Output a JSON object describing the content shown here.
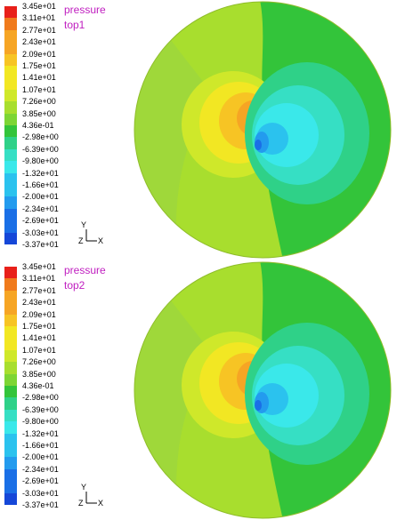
{
  "colors": {
    "red": "#e8201a",
    "orange": "#f07a1c",
    "light_orange": "#f6a524",
    "yellow_orange": "#f7c424",
    "yellow": "#f2e723",
    "yellow_green": "#cfe82a",
    "light_green": "#a8de2e",
    "green": "#7dd534",
    "bright_green": "#33c43a",
    "sea_green": "#2fd188",
    "teal": "#36dfc4",
    "cyan": "#3ae8ea",
    "sky": "#2bc2ee",
    "blue_light": "#239bee",
    "blue": "#1a6fe6",
    "deep_blue": "#1547d8",
    "navy": "#0e20c8",
    "title_magenta": "#c020c0"
  },
  "chart_data": [
    {
      "type": "heatmap",
      "title": "pressure",
      "subtitle": "top1",
      "colorbar": {
        "labels": [
          "3.45e+01",
          "3.11e+01",
          "2.77e+01",
          "2.43e+01",
          "2.09e+01",
          "1.75e+01",
          "1.41e+01",
          "1.07e+01",
          "7.26e+00",
          "3.85e+00",
          "4.36e-01",
          "-2.98e+00",
          "-6.39e+00",
          "-9.80e+00",
          "-1.32e+01",
          "-1.66e+01",
          "-2.00e+01",
          "-2.34e+01",
          "-2.69e+01",
          "-3.03e+01",
          "-3.37e+01"
        ],
        "range": [
          -33.7,
          34.5
        ]
      },
      "axes": {
        "y": "Y",
        "z": "Z",
        "x": "X"
      }
    },
    {
      "type": "heatmap",
      "title": "pressure",
      "subtitle": "top2",
      "colorbar": {
        "labels": [
          "3.45e+01",
          "3.11e+01",
          "2.77e+01",
          "2.43e+01",
          "2.09e+01",
          "1.75e+01",
          "1.41e+01",
          "1.07e+01",
          "7.26e+00",
          "3.85e+00",
          "4.36e-01",
          "-2.98e+00",
          "-6.39e+00",
          "-9.80e+00",
          "-1.32e+01",
          "-1.66e+01",
          "-2.00e+01",
          "-2.34e+01",
          "-2.69e+01",
          "-3.03e+01",
          "-3.37e+01"
        ],
        "range": [
          -33.7,
          34.5
        ]
      },
      "axes": {
        "y": "Y",
        "z": "Z",
        "x": "X"
      }
    }
  ]
}
